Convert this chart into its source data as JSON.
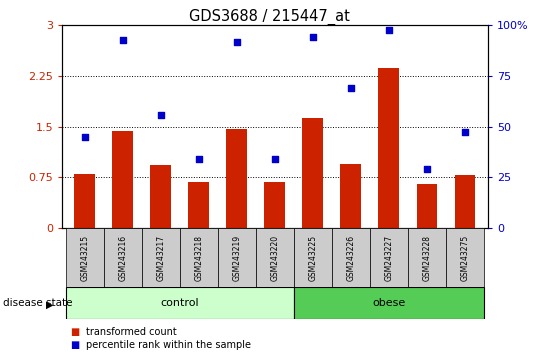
{
  "title": "GDS3688 / 215447_at",
  "categories": [
    "GSM243215",
    "GSM243216",
    "GSM243217",
    "GSM243218",
    "GSM243219",
    "GSM243220",
    "GSM243225",
    "GSM243226",
    "GSM243227",
    "GSM243228",
    "GSM243275"
  ],
  "bar_values": [
    0.8,
    1.43,
    0.93,
    0.68,
    1.47,
    0.68,
    1.63,
    0.95,
    2.37,
    0.65,
    0.78
  ],
  "scatter_values": [
    1.35,
    2.77,
    1.67,
    1.02,
    2.75,
    1.02,
    2.82,
    2.07,
    2.92,
    0.87,
    1.42
  ],
  "left_ylim": [
    0,
    3
  ],
  "left_yticks": [
    0,
    0.75,
    1.5,
    2.25,
    3
  ],
  "left_ytick_labels": [
    "0",
    "0.75",
    "1.5",
    "2.25",
    "3"
  ],
  "right_ytick_labels": [
    "0",
    "25",
    "50",
    "75",
    "100%"
  ],
  "bar_color": "#cc2200",
  "scatter_color": "#0000cc",
  "control_indices": [
    0,
    1,
    2,
    3,
    4,
    5
  ],
  "obese_indices": [
    6,
    7,
    8,
    9,
    10
  ],
  "control_label": "control",
  "obese_label": "obese",
  "disease_state_label": "disease state",
  "legend_bar_label": "transformed count",
  "legend_scatter_label": "percentile rank within the sample",
  "control_color": "#ccffcc",
  "obese_color": "#55cc55",
  "label_bg_color": "#cccccc"
}
